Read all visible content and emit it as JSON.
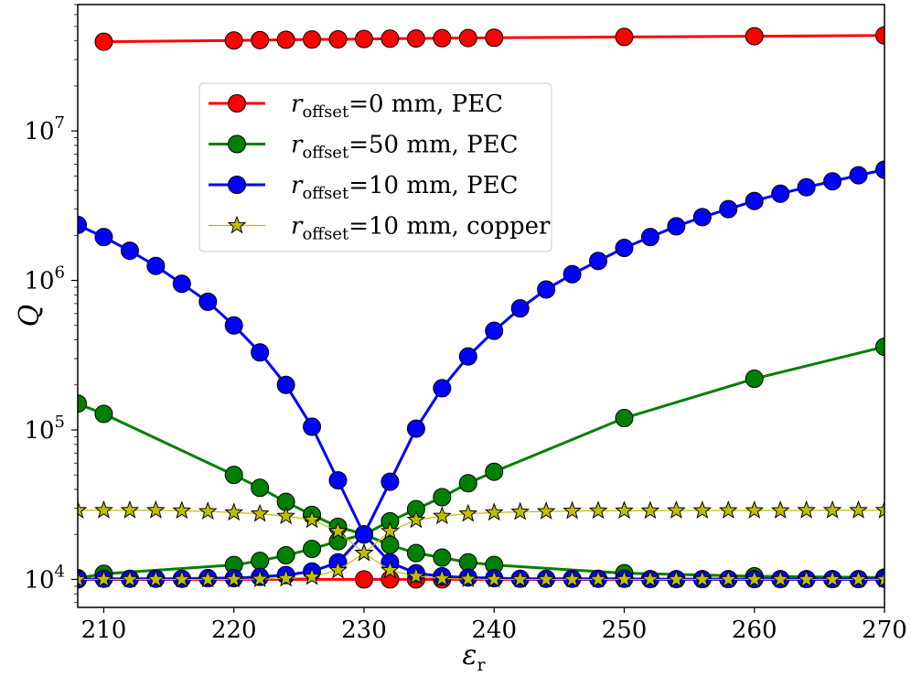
{
  "chart_data": {
    "type": "line",
    "xlabel": "ε",
    "xlabel_sub": "r",
    "ylabel": "Q",
    "xlim": [
      208,
      270
    ],
    "ylim": [
      6500,
      70000000
    ],
    "yscale": "log",
    "x_ticks": [
      "210",
      "220",
      "230",
      "240",
      "250",
      "260",
      "270"
    ],
    "y_ticks": [
      {
        "base": "10",
        "exp": "4"
      },
      {
        "base": "10",
        "exp": "5"
      },
      {
        "base": "10",
        "exp": "6"
      },
      {
        "base": "10",
        "exp": "7"
      }
    ],
    "legend_position": "upper-left",
    "series": [
      {
        "name": "r",
        "name_sub": "offset",
        "name_rest": "=0 mm, PEC",
        "color": "#ff0000",
        "marker": "circle",
        "branches": [
          {
            "x": [
              210,
              220,
              222,
              224,
              226,
              228,
              230,
              232,
              234,
              236,
              238,
              240,
              250,
              260,
              270
            ],
            "y": [
              39500000,
              40300000,
              40500000,
              40700000,
              40900000,
              41000000,
              41200000,
              41400000,
              41500000,
              41700000,
              41800000,
              42000000,
              42500000,
              43000000,
              43500000
            ]
          },
          {
            "x": [
              208,
              210,
              212,
              214,
              216,
              218,
              220,
              222,
              224,
              226,
              228,
              230,
              232,
              234,
              236,
              238,
              240,
              242,
              244,
              246,
              248,
              250,
              252,
              254,
              256,
              258,
              260,
              262,
              264,
              266,
              268,
              270
            ],
            "y": [
              10000,
              10000,
              10000,
              10000,
              10000,
              10000,
              10000,
              10000,
              10000,
              10000,
              10000,
              10000,
              10000,
              10000,
              10000,
              10000,
              10000,
              10000,
              10000,
              10000,
              10000,
              10000,
              10000,
              10000,
              10000,
              10000,
              10000,
              10000,
              10000,
              10000,
              10000,
              10000
            ],
            "markers": [
              230,
              232,
              234,
              236
            ]
          }
        ]
      },
      {
        "name": "r",
        "name_sub": "offset",
        "name_rest": "=50 mm, PEC",
        "color": "#008000",
        "marker": "circle",
        "branches": [
          {
            "x": [
              208,
              210,
              220,
              222,
              224,
              226,
              228,
              230,
              232,
              234,
              236,
              238,
              240,
              250,
              260,
              270
            ],
            "y": [
              150000,
              128000,
              50000,
              41000,
              33000,
              27000,
              22500,
              20000,
              17000,
              15000,
              14000,
              13000,
              12500,
              11000,
              10500,
              10300
            ]
          },
          {
            "x": [
              208,
              210,
              220,
              222,
              224,
              226,
              228,
              230,
              232,
              234,
              236,
              238,
              240,
              250,
              260,
              270
            ],
            "y": [
              10200,
              10900,
              12500,
              13300,
              14500,
              16000,
              18000,
              20000,
              24500,
              29500,
              35500,
              44000,
              52500,
              120000,
              220000,
              360000
            ]
          }
        ]
      },
      {
        "name": "r",
        "name_sub": "offset",
        "name_rest": "=10 mm, PEC",
        "color": "#0000ff",
        "marker": "circle",
        "branches": [
          {
            "x": [
              208,
              210,
              212,
              214,
              216,
              218,
              220,
              222,
              224,
              226,
              228,
              230,
              232,
              234,
              236,
              238,
              240,
              242,
              244,
              246,
              248,
              250,
              252,
              254,
              256,
              258,
              260,
              262,
              264,
              266,
              268,
              270
            ],
            "y": [
              2350000,
              1950000,
              1580000,
              1250000,
              950000,
              720000,
              500000,
              330000,
              200000,
              105000,
              46000,
              20000,
              45000,
              102000,
              190000,
              310000,
              460000,
              650000,
              870000,
              1100000,
              1350000,
              1650000,
              1950000,
              2300000,
              2650000,
              3000000,
              3400000,
              3800000,
              4200000,
              4600000,
              5050000,
              5500000
            ]
          },
          {
            "x": [
              208,
              210,
              212,
              214,
              216,
              218,
              220,
              222,
              224,
              226,
              228,
              230,
              232,
              234,
              236,
              238,
              240,
              242,
              244,
              246,
              248,
              250,
              252,
              254,
              256,
              258,
              260,
              262,
              264,
              266,
              268,
              270
            ],
            "y": [
              10000,
              10100,
              10100,
              10100,
              10100,
              10200,
              10200,
              10400,
              10700,
              11300,
              13000,
              20000,
              13000,
              11000,
              10500,
              10300,
              10200,
              10100,
              10100,
              10100,
              10100,
              10100,
              10050,
              10050,
              10050,
              10050,
              10050,
              10050,
              10050,
              10050,
              10050,
              10100
            ]
          }
        ]
      },
      {
        "name": "r",
        "name_sub": "offset",
        "name_rest": "=10 mm, copper",
        "color": "#bfbf00",
        "marker": "star",
        "branches": [
          {
            "x": [
              208,
              210,
              212,
              214,
              216,
              218,
              220,
              222,
              224,
              226,
              228,
              230,
              232,
              234,
              236,
              238,
              240,
              242,
              244,
              246,
              248,
              250,
              252,
              254,
              256,
              258,
              260,
              262,
              264,
              266,
              268,
              270
            ],
            "y": [
              29000,
              29000,
              29000,
              29000,
              28800,
              28500,
              28000,
              27500,
              26500,
              25000,
              21000,
              15000,
              21000,
              25000,
              26500,
              27500,
              28000,
              28300,
              28500,
              28700,
              28800,
              28800,
              28800,
              28900,
              28900,
              28900,
              28900,
              28900,
              29000,
              29000,
              29000,
              29000
            ]
          },
          {
            "x": [
              208,
              210,
              212,
              214,
              216,
              218,
              220,
              222,
              224,
              226,
              228,
              230,
              232,
              234,
              236,
              238,
              240,
              242,
              244,
              246,
              248,
              250,
              252,
              254,
              256,
              258,
              260,
              262,
              264,
              266,
              268,
              270
            ],
            "y": [
              10000,
              10000,
              10000,
              10000,
              10000,
              10000,
              10000,
              10050,
              10150,
              10400,
              11500,
              15000,
              11500,
              10500,
              10150,
              10050,
              10000,
              10000,
              10000,
              10000,
              10000,
              10000,
              10000,
              10000,
              10000,
              10000,
              10000,
              10000,
              10000,
              10000,
              10000,
              10000
            ]
          }
        ]
      }
    ]
  }
}
